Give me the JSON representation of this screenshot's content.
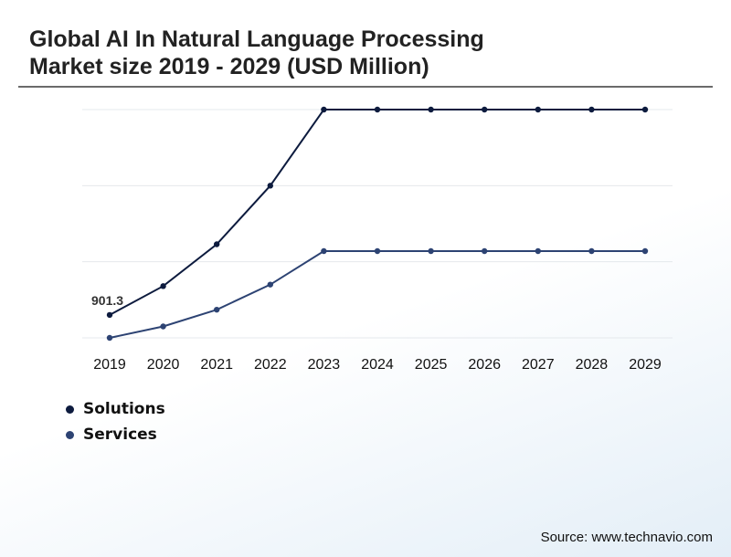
{
  "title_line1": "Global AI In Natural Language Processing",
  "title_line2": "Market size 2019 - 2029 (USD Million)",
  "source": "Source: www.technavio.com",
  "chart_data": {
    "type": "line",
    "title": "Global AI In Natural Language Processing Market size 2019 - 2029 (USD Million)",
    "xlabel": "",
    "ylabel": "",
    "x": [
      "2019",
      "2020",
      "2021",
      "2022",
      "2023",
      "2024",
      "2025",
      "2026",
      "2027",
      "2028",
      "2029"
    ],
    "ylim": [
      600,
      3600
    ],
    "grid": true,
    "legend_position": "bottom-left",
    "series": [
      {
        "name": "Solutions",
        "color": "#0d1b3e",
        "values": [
          901.3,
          1280,
          1830,
          2600,
          3600,
          3600,
          3600,
          3600,
          3600,
          3600,
          3600
        ]
      },
      {
        "name": "Services",
        "color": "#2d4373",
        "values": [
          600,
          750,
          970,
          1300,
          1740,
          1740,
          1740,
          1740,
          1740,
          1740,
          1740
        ]
      }
    ],
    "annotations": [
      {
        "series": "Solutions",
        "index": 0,
        "label": "901.3"
      }
    ]
  }
}
